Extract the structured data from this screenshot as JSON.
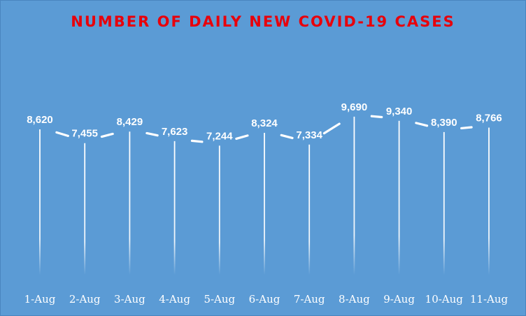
{
  "chart_data": {
    "type": "line",
    "title": "NUMBER OF DAILY NEW COVID-19 CASES",
    "categories": [
      "1-Aug",
      "2-Aug",
      "3-Aug",
      "4-Aug",
      "5-Aug",
      "6-Aug",
      "7-Aug",
      "8-Aug",
      "9-Aug",
      "10-Aug",
      "11-Aug"
    ],
    "values": [
      8620,
      7455,
      8429,
      7623,
      7244,
      8324,
      7334,
      9690,
      9340,
      8390,
      8766
    ],
    "value_labels": [
      "8,620",
      "7,455",
      "8,429",
      "7,623",
      "7,244",
      "8,324",
      "7,334",
      "9,690",
      "9,340",
      "8,390",
      "8,766"
    ],
    "drop_lines": true,
    "data_labels": true,
    "grid": false,
    "legend": "none",
    "line_color": "#ffffff",
    "background_color": "#5b9bd5",
    "title_color": "#e8000b"
  }
}
